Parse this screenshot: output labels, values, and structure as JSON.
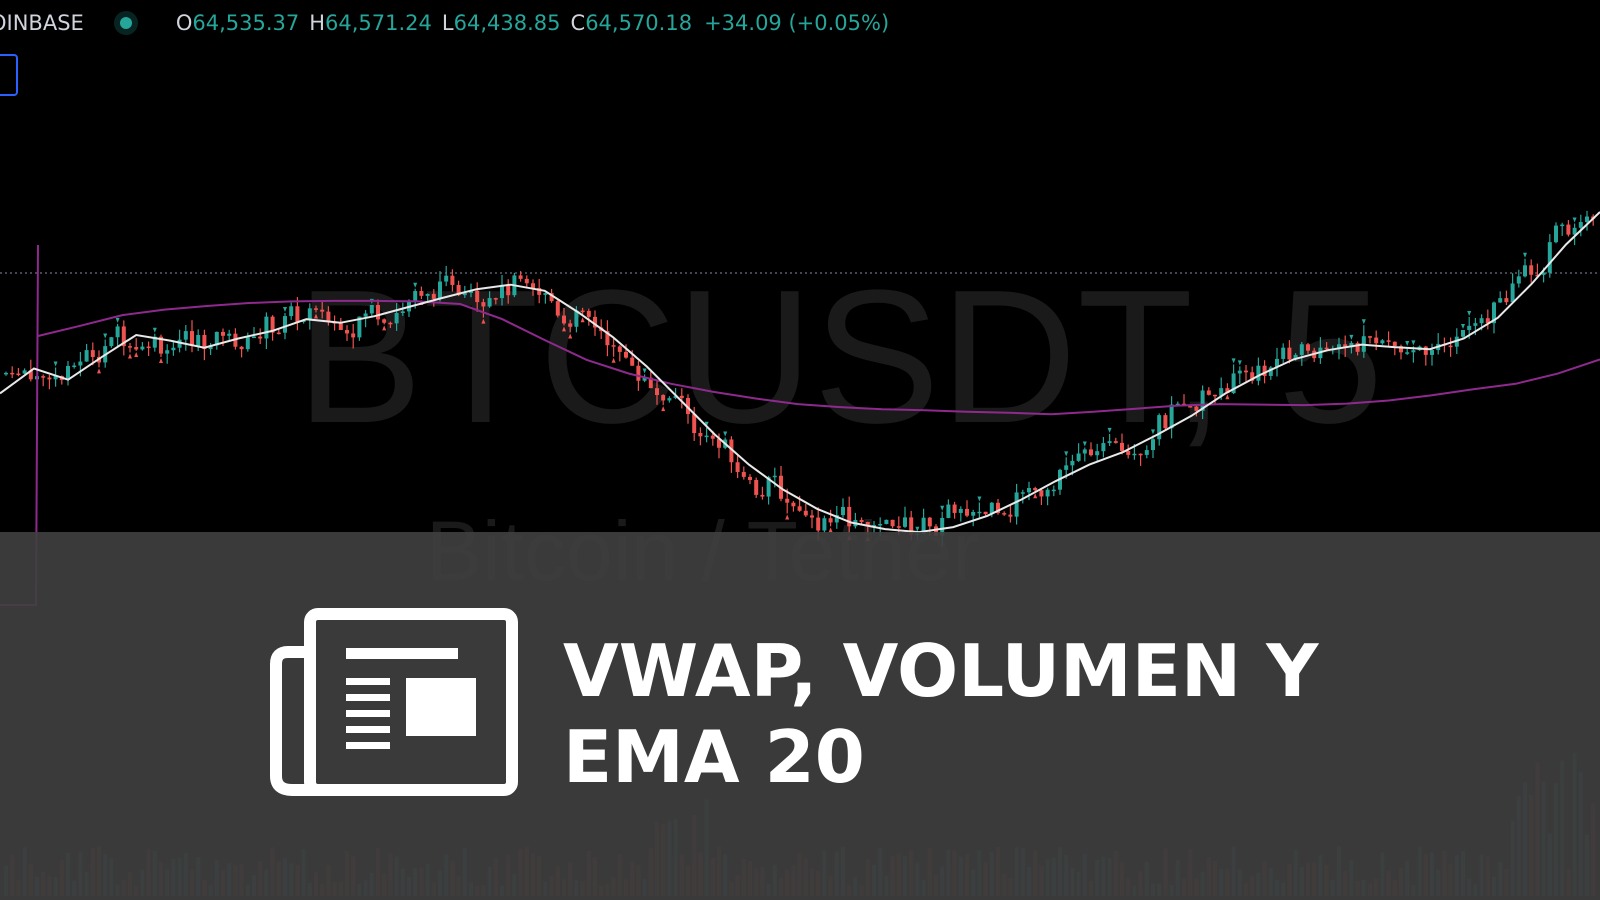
{
  "header": {
    "exchange": "OINBASE",
    "open_label": "O",
    "open": "64,535.37",
    "high_label": "H",
    "high": "64,571.24",
    "low_label": "L",
    "low": "64,438.85",
    "close_label": "C",
    "close": "64,570.18",
    "change": "+34.09 (+0.05%)"
  },
  "watermark": {
    "symbol": "BTCUSDT, 5",
    "description": "Bitcoin / Tether"
  },
  "banner": {
    "line1": "VWAP, VOLUMEN Y",
    "line2": "EMA 20",
    "icon": "newspaper-icon"
  },
  "colors": {
    "up": "#26a69a",
    "down": "#ef5350",
    "ema": "#e8e8e8",
    "vwap": "#8e2a8e",
    "banner": "#404040",
    "headline": "#ffffff"
  },
  "chart_data": {
    "type": "line",
    "title": "",
    "series": [
      {
        "name": "",
        "values": [
          63982,
          64031,
          64009,
          64054,
          64097,
          64086,
          64072,
          64090,
          64105,
          64128,
          64121,
          64134,
          64152,
          64170,
          64187,
          64196,
          64184,
          64141,
          64093,
          64035,
          63968,
          63901,
          63842,
          63793,
          63755,
          63728,
          63715,
          63709,
          63719,
          63741,
          63773,
          63809,
          63842,
          63867,
          63901,
          63938,
          63982,
          64018,
          64049,
          64067,
          64078,
          64073,
          64069,
          64090,
          64131,
          64198,
          64275,
          64339
        ]
      },
      {
        "name": "",
        "values": [
          64095,
          64115,
          64136,
          64147,
          64154,
          64160,
          64163,
          64164,
          64164,
          64163,
          64158,
          64128,
          64087,
          64048,
          64021,
          64001,
          63985,
          63972,
          63961,
          63955,
          63951,
          63949,
          63946,
          63944,
          63941,
          63946,
          63952,
          63958,
          63961,
          63960,
          63959,
          63962,
          63968,
          63978,
          63990,
          64001,
          64021,
          64049
        ]
      }
    ]
  }
}
